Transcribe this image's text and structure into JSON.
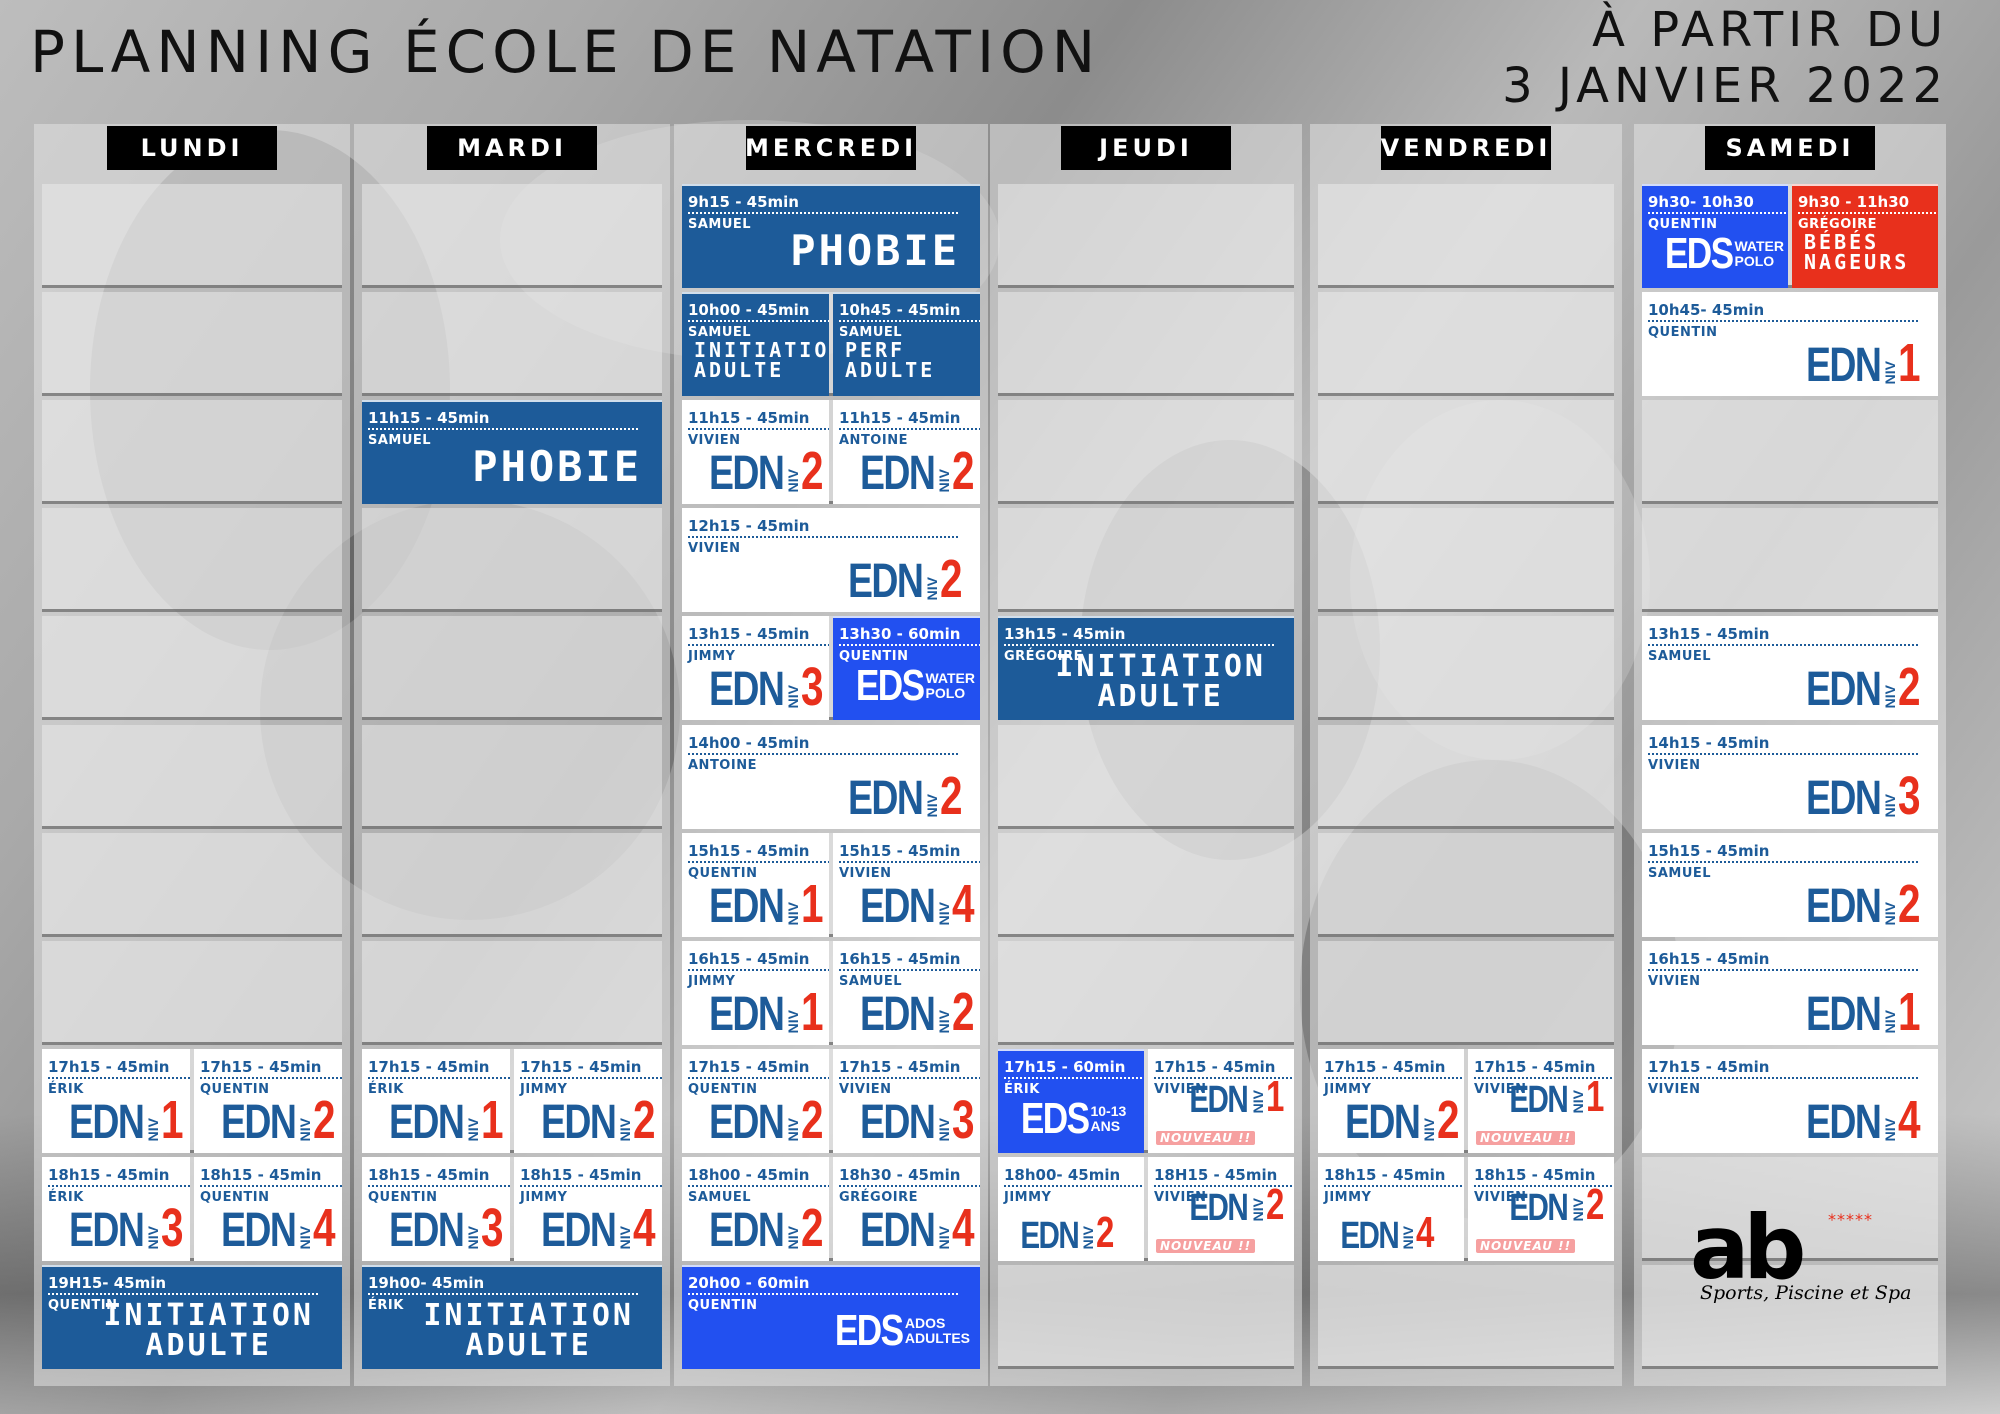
{
  "title": "PLANNING ÉCOLE DE NATATION",
  "subtitle_line1": "À PARTIR DU",
  "subtitle_line2": "3 JANVIER 2022",
  "days": [
    "LUNDI",
    "MARDI",
    "MERCREDI",
    "JEUDI",
    "VENDREDI",
    "SAMEDI"
  ],
  "common": {
    "niv": "NIV",
    "edn": "EDN",
    "eds": "EDS",
    "nouveau": "NOUVEAU !!"
  },
  "classes": {
    "mer_phobie": {
      "time": "9h15 - 45min",
      "instructor": "SAMUEL",
      "label": "PHOBIE"
    },
    "mer_ini": {
      "time": "10h00 - 45min",
      "instructor": "SAMUEL",
      "label1": "INITIATION",
      "label2": "ADULTE"
    },
    "mer_perf": {
      "time": "10h45 - 45min",
      "instructor": "SAMUEL",
      "label1": "PERF",
      "label2": "ADULTE"
    },
    "mar_phobie": {
      "time": "11h15 - 45min",
      "instructor": "SAMUEL",
      "label": "PHOBIE"
    },
    "mer_1115a": {
      "time": "11h15 - 45min",
      "instructor": "VIVIEN",
      "level": "2"
    },
    "mer_1115b": {
      "time": "11h15 - 45min",
      "instructor": "ANTOINE",
      "level": "2"
    },
    "mer_1215": {
      "time": "12h15 - 45min",
      "instructor": "VIVIEN",
      "level": "2"
    },
    "mer_1315": {
      "time": "13h15 - 45min",
      "instructor": "JIMMY",
      "level": "3"
    },
    "mer_wp": {
      "time": "13h30 - 60min",
      "instructor": "QUENTIN",
      "s1": "WATER",
      "s2": "POLO"
    },
    "jeu_ini": {
      "time": "13h15 - 45min",
      "instructor": "GRÉGOIRE",
      "label1": "INITIATION",
      "label2": "ADULTE"
    },
    "mer_1400": {
      "time": "14h00 - 45min",
      "instructor": "ANTOINE",
      "level": "2"
    },
    "mer_1515a": {
      "time": "15h15 - 45min",
      "instructor": "QUENTIN",
      "level": "1"
    },
    "mer_1515b": {
      "time": "15h15 - 45min",
      "instructor": "VIVIEN",
      "level": "4"
    },
    "mer_1615a": {
      "time": "16h15 - 45min",
      "instructor": "JIMMY",
      "level": "1"
    },
    "mer_1615b": {
      "time": "16h15 - 45min",
      "instructor": "SAMUEL",
      "level": "2"
    },
    "lun_1715a": {
      "time": "17h15 - 45min",
      "instructor": "ÉRIK",
      "level": "1"
    },
    "lun_1715b": {
      "time": "17h15 - 45min",
      "instructor": "QUENTIN",
      "level": "2"
    },
    "lun_1815a": {
      "time": "18h15 - 45min",
      "instructor": "ÉRIK",
      "level": "3"
    },
    "lun_1815b": {
      "time": "18h15 - 45min",
      "instructor": "QUENTIN",
      "level": "4"
    },
    "lun_ini": {
      "time": "19H15- 45min",
      "instructor": "QUENTIN",
      "label1": "INITIATION",
      "label2": "ADULTE"
    },
    "mar_1715a": {
      "time": "17h15 - 45min",
      "instructor": "ÉRIK",
      "level": "1"
    },
    "mar_1715b": {
      "time": "17h15 - 45min",
      "instructor": "JIMMY",
      "level": "2"
    },
    "mar_1815a": {
      "time": "18h15 - 45min",
      "instructor": "QUENTIN",
      "level": "3"
    },
    "mar_1815b": {
      "time": "18h15 - 45min",
      "instructor": "JIMMY",
      "level": "4"
    },
    "mar_ini": {
      "time": "19h00- 45min",
      "instructor": "ÉRIK",
      "label1": "INITIATION",
      "label2": "ADULTE"
    },
    "mer_1715a": {
      "time": "17h15 - 45min",
      "instructor": "QUENTIN",
      "level": "2"
    },
    "mer_1715b": {
      "time": "17h15 - 45min",
      "instructor": "VIVIEN",
      "level": "3"
    },
    "mer_1800": {
      "time": "18h00 - 45min",
      "instructor": "SAMUEL",
      "level": "2"
    },
    "mer_1830": {
      "time": "18h30 - 45min",
      "instructor": "GRÉGOIRE",
      "level": "4"
    },
    "mer_eds": {
      "time": "20h00 - 60min",
      "instructor": "QUENTIN",
      "s1": "ADOS",
      "s2": "ADULTES"
    },
    "jeu_eds": {
      "time": "17h15 - 60min",
      "instructor": "ÉRIK",
      "s1": "10-13",
      "s2": "ANS"
    },
    "jeu_1715": {
      "time": "17h15 - 45min",
      "instructor": "VIVIEN",
      "level": "1"
    },
    "jeu_1800": {
      "time": "18h00- 45min",
      "instructor": "JIMMY",
      "level": "2"
    },
    "jeu_1815": {
      "time": "18H15 - 45min",
      "instructor": "VIVIEN",
      "level": "2"
    },
    "ven_1715a": {
      "time": "17h15 - 45min",
      "instructor": "JIMMY",
      "level": "2"
    },
    "ven_1715b": {
      "time": "17h15 - 45min",
      "instructor": "VIVIEN",
      "level": "1"
    },
    "ven_1815a": {
      "time": "18h15 - 45min",
      "instructor": "JIMMY",
      "level": "4"
    },
    "ven_1815b": {
      "time": "18h15 - 45min",
      "instructor": "VIVIEN",
      "level": "2"
    },
    "sam_wp": {
      "time": "9h30- 10h30",
      "instructor": "QUENTIN",
      "s1": "WATER",
      "s2": "POLO"
    },
    "sam_bb": {
      "time": "9h30 - 11h30",
      "instructor": "GRÉGOIRE",
      "label1": "BÉBÉS",
      "label2": "NAGEURS"
    },
    "sam_1045": {
      "time": "10h45- 45min",
      "instructor": "QUENTIN",
      "level": "1"
    },
    "sam_1315": {
      "time": "13h15 - 45min",
      "instructor": "SAMUEL",
      "level": "2"
    },
    "sam_1415": {
      "time": "14h15 - 45min",
      "instructor": "VIVIEN",
      "level": "3"
    },
    "sam_1515": {
      "time": "15h15 - 45min",
      "instructor": "SAMUEL",
      "level": "2"
    },
    "sam_1615": {
      "time": "16h15 - 45min",
      "instructor": "VIVIEN",
      "level": "1"
    },
    "sam_1715": {
      "time": "17h15 - 45min",
      "instructor": "VIVIEN",
      "level": "4"
    }
  },
  "logo": {
    "text": "ab",
    "stars": "*****",
    "tagline": "Sports, Piscine et Spa"
  },
  "colors": {
    "blue": "#1d5b99",
    "bright_blue": "#2250f0",
    "red": "#e8301c",
    "white": "#ffffff",
    "black": "#000000"
  }
}
